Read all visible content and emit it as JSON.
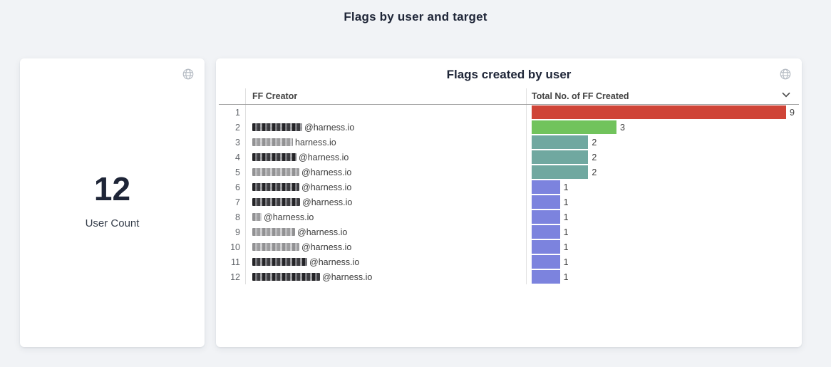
{
  "page": {
    "title": "Flags by user and target"
  },
  "user_count_card": {
    "value": "12",
    "label": "User Count"
  },
  "flags_card": {
    "title": "Flags created by user",
    "columns": {
      "creator": "FF Creator",
      "total": "Total No. of FF Created"
    },
    "max_value": 9,
    "rows": [
      {
        "rank": "1",
        "suffix": "",
        "redact_width": 0,
        "tone": "dark",
        "value": 9,
        "label": "9",
        "color": "#cf4437"
      },
      {
        "rank": "2",
        "suffix": "@harness.io",
        "redact_width": 70,
        "tone": "dark",
        "value": 3,
        "label": "3",
        "color": "#71c35c"
      },
      {
        "rank": "3",
        "suffix": "harness.io",
        "redact_width": 57,
        "tone": "light",
        "value": 2,
        "label": "2",
        "color": "#70a8a0"
      },
      {
        "rank": "4",
        "suffix": "@harness.io",
        "redact_width": 62,
        "tone": "dark",
        "value": 2,
        "label": "2",
        "color": "#70a8a0"
      },
      {
        "rank": "5",
        "suffix": "@harness.io",
        "redact_width": 66,
        "tone": "light",
        "value": 2,
        "label": "2",
        "color": "#70a8a0"
      },
      {
        "rank": "6",
        "suffix": "@harness.io",
        "redact_width": 66,
        "tone": "dark",
        "value": 1,
        "label": "1",
        "color": "#7c83de"
      },
      {
        "rank": "7",
        "suffix": "@harness.io",
        "redact_width": 67,
        "tone": "dark",
        "value": 1,
        "label": "1",
        "color": "#7c83de"
      },
      {
        "rank": "8",
        "suffix": "@harness.io",
        "redact_width": 13,
        "tone": "light",
        "value": 1,
        "label": "1",
        "color": "#7c83de"
      },
      {
        "rank": "9",
        "suffix": "@harness.io",
        "redact_width": 60,
        "tone": "light",
        "value": 1,
        "label": "1",
        "color": "#7c83de"
      },
      {
        "rank": "10",
        "suffix": "@harness.io",
        "redact_width": 66,
        "tone": "light",
        "value": 1,
        "label": "1",
        "color": "#7c83de"
      },
      {
        "rank": "11",
        "suffix": "@harness.io",
        "redact_width": 77,
        "tone": "dark",
        "value": 1,
        "label": "1",
        "color": "#7c83de"
      },
      {
        "rank": "12",
        "suffix": "@harness.io",
        "redact_width": 95,
        "tone": "dark",
        "value": 1,
        "label": "1",
        "color": "#7c83de"
      }
    ]
  },
  "icons": {
    "globe": "globe-icon",
    "chevron": "chevron-down-icon"
  },
  "colors": {
    "background": "#f1f3f6",
    "card": "#ffffff",
    "title_text": "#1e2537",
    "bar_red": "#cf4437",
    "bar_green": "#71c35c",
    "bar_teal": "#70a8a0",
    "bar_blue": "#7c83de"
  },
  "chart_data": [
    {
      "type": "number",
      "title": "User Count",
      "value": 12
    },
    {
      "type": "bar",
      "orientation": "horizontal",
      "title": "Flags created by user",
      "xlabel": "Total No. of FF Created",
      "ylabel": "FF Creator",
      "xlim": [
        0,
        9
      ],
      "grid": false,
      "legend": "none",
      "categories": [
        "[redacted]",
        "[redacted]@harness.io",
        "[redacted]harness.io",
        "[redacted]@harness.io",
        "[redacted]@harness.io",
        "[redacted]@harness.io",
        "[redacted]@harness.io",
        "[redacted]@harness.io",
        "[redacted]@harness.io",
        "[redacted]@harness.io",
        "[redacted]@harness.io",
        "[redacted]@harness.io"
      ],
      "values": [
        9,
        3,
        2,
        2,
        2,
        1,
        1,
        1,
        1,
        1,
        1,
        1
      ],
      "bar_colors": [
        "#cf4437",
        "#71c35c",
        "#70a8a0",
        "#70a8a0",
        "#70a8a0",
        "#7c83de",
        "#7c83de",
        "#7c83de",
        "#7c83de",
        "#7c83de",
        "#7c83de",
        "#7c83de"
      ]
    }
  ]
}
